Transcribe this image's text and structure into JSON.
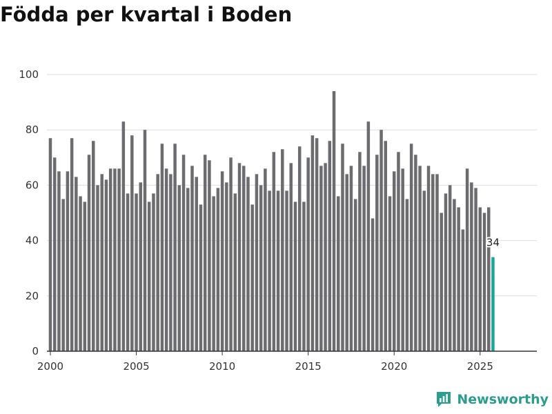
{
  "chart_data": {
    "type": "bar",
    "title": "Födda per kvartal i Boden",
    "xlabel": "",
    "ylabel": "",
    "xlim": [
      1999.8,
      2028.3
    ],
    "ylim": [
      0,
      100
    ],
    "x_ticks": [
      2000,
      2005,
      2010,
      2015,
      2020,
      2025
    ],
    "y_ticks": [
      0,
      20,
      40,
      60,
      80,
      100
    ],
    "grid": true,
    "start_year": 2000,
    "periods_per_year": 4,
    "values": [
      77,
      70,
      65,
      55,
      65,
      77,
      63,
      56,
      54,
      71,
      76,
      60,
      64,
      62,
      66,
      66,
      66,
      83,
      57,
      78,
      57,
      61,
      80,
      54,
      57,
      64,
      75,
      66,
      64,
      75,
      60,
      71,
      59,
      67,
      63,
      53,
      71,
      69,
      56,
      59,
      65,
      61,
      70,
      57,
      68,
      67,
      63,
      53,
      64,
      60,
      66,
      58,
      72,
      58,
      73,
      58,
      68,
      54,
      74,
      54,
      70,
      78,
      77,
      67,
      68,
      76,
      94,
      56,
      75,
      64,
      67,
      55,
      72,
      67,
      83,
      48,
      71,
      80,
      76,
      56,
      65,
      72,
      66,
      55,
      75,
      71,
      67,
      58,
      67,
      64,
      64,
      50,
      57,
      60,
      55,
      52,
      44,
      66,
      61,
      59,
      52,
      50,
      52,
      34
    ],
    "highlight_last": true,
    "last_value_label": "34",
    "colors": {
      "bar": "#6b6b70",
      "highlight": "#1aa79b",
      "grid": "#dddddd",
      "axis": "#333333"
    }
  },
  "brand": {
    "name": "Newsworthy",
    "icon": "newsworthy-logo-icon",
    "color": "#2a9d8f"
  }
}
